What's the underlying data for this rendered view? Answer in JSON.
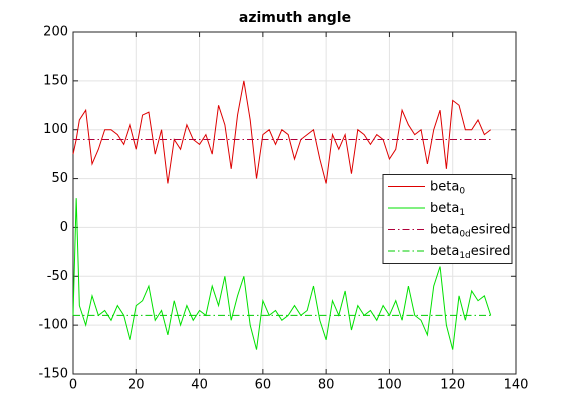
{
  "chart_data": {
    "type": "line",
    "title": "azimuth angle",
    "x": [
      0,
      1,
      2,
      4,
      6,
      8,
      10,
      12,
      14,
      16,
      18,
      20,
      22,
      24,
      26,
      28,
      30,
      32,
      34,
      36,
      38,
      40,
      42,
      44,
      46,
      48,
      50,
      52,
      54,
      56,
      58,
      60,
      62,
      64,
      66,
      68,
      70,
      72,
      74,
      76,
      78,
      80,
      82,
      84,
      86,
      88,
      90,
      92,
      94,
      96,
      98,
      100,
      102,
      104,
      106,
      108,
      110,
      112,
      114,
      116,
      118,
      120,
      122,
      124,
      126,
      128,
      130,
      132
    ],
    "series": [
      {
        "name": "beta",
        "subscript": "0",
        "suffix": "",
        "color": "#dd0000",
        "style": "solid",
        "values": [
          75,
          90,
          110,
          120,
          65,
          80,
          100,
          100,
          95,
          85,
          105,
          80,
          115,
          118,
          75,
          100,
          45,
          90,
          80,
          105,
          90,
          85,
          95,
          75,
          125,
          105,
          60,
          115,
          150,
          110,
          50,
          95,
          100,
          85,
          100,
          95,
          70,
          90,
          95,
          100,
          70,
          45,
          95,
          80,
          95,
          55,
          100,
          95,
          85,
          95,
          90,
          70,
          80,
          120,
          105,
          95,
          100,
          65,
          100,
          120,
          60,
          130,
          125,
          100,
          100,
          110,
          95,
          100
        ]
      },
      {
        "name": "beta",
        "subscript": "1",
        "suffix": "",
        "color": "#00e000",
        "style": "solid",
        "values": [
          -90,
          30,
          -80,
          -100,
          -70,
          -90,
          -85,
          -95,
          -80,
          -90,
          -115,
          -80,
          -75,
          -60,
          -95,
          -85,
          -110,
          -75,
          -100,
          -80,
          -95,
          -85,
          -90,
          -60,
          -80,
          -50,
          -95,
          -70,
          -50,
          -100,
          -125,
          -75,
          -90,
          -85,
          -95,
          -90,
          -80,
          -90,
          -85,
          -60,
          -95,
          -115,
          -75,
          -90,
          -65,
          -105,
          -80,
          -90,
          -85,
          -95,
          -80,
          -90,
          -75,
          -95,
          -60,
          -90,
          -95,
          -110,
          -60,
          -40,
          -100,
          -125,
          -70,
          -95,
          -65,
          -75,
          -70,
          -90
        ]
      },
      {
        "name": "beta",
        "subscript": "0d",
        "suffix": "esired",
        "color": "#b0003a",
        "style": "dashdot",
        "x": [
          0,
          132
        ],
        "values": [
          90,
          90
        ]
      },
      {
        "name": "beta",
        "subscript": "1d",
        "suffix": "esired",
        "color": "#00cc00",
        "style": "dashdot",
        "x": [
          0,
          132
        ],
        "values": [
          -90,
          -90
        ]
      }
    ],
    "xlim": [
      0,
      140
    ],
    "xticks": [
      0,
      20,
      40,
      60,
      80,
      100,
      120,
      140
    ],
    "ylim": [
      -150,
      200
    ],
    "yticks": [
      -150,
      -100,
      -50,
      0,
      50,
      100,
      150,
      200
    ],
    "grid": true,
    "legend": "east"
  }
}
